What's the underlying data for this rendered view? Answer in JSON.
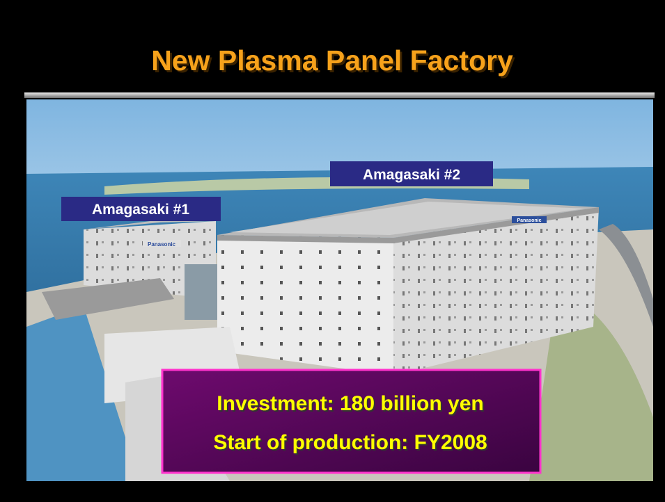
{
  "title": "New Plasma Panel Factory",
  "labels": {
    "building1": "Amagasaki #1",
    "building2": "Amagasaki #2"
  },
  "logos": [
    "Panasonic",
    "Panasonic"
  ],
  "info": [
    "Investment: 180 billion yen",
    "Start of production: FY2008"
  ]
}
